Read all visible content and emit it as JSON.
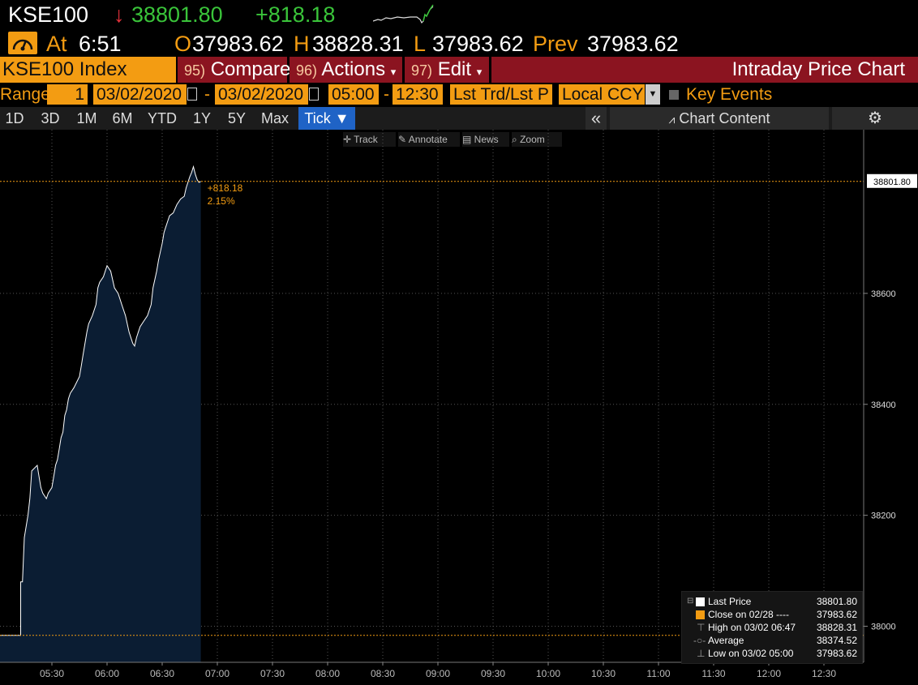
{
  "header": {
    "ticker": "KSE100",
    "arrow": "↓",
    "last": "38801.80",
    "change": "+818.18",
    "at_label": "At",
    "time": "6:51",
    "open_label": "O",
    "open": "37983.62",
    "high_label": "H",
    "high": "38828.31",
    "low_label": "L",
    "low": "37983.62",
    "prev_label": "Prev",
    "prev": "37983.62"
  },
  "menu": {
    "security": "KSE100 Index",
    "compare_num": "95)",
    "compare": "Compare",
    "actions_num": "96)",
    "actions": "Actions",
    "edit_num": "97)",
    "edit": "Edit",
    "title": "Intraday Price Chart"
  },
  "range": {
    "label": "Range",
    "bars": "1",
    "start_date": "03/02/2020",
    "end_date": "03/02/2020",
    "start_time": "05:00",
    "end_time": "12:30",
    "price_type": "Lst Trd/Lst P",
    "currency": "Local CCY",
    "key_events": "Key Events"
  },
  "periods": {
    "tabs": [
      "1D",
      "3D",
      "1M",
      "6M",
      "YTD",
      "1Y",
      "5Y",
      "Max"
    ],
    "active": "Tick ▼",
    "chart_content": "Chart Content"
  },
  "toolbar": {
    "track": "Track",
    "annotate": "Annotate",
    "news": "News",
    "zoom": "Zoom"
  },
  "colors": {
    "orange": "#f39c12",
    "green": "#3ac43a",
    "red": "#e8323c",
    "area": "#0b1d33"
  },
  "chart_data": {
    "type": "area",
    "x_ticks": [
      "05:30",
      "06:00",
      "06:30",
      "07:00",
      "07:30",
      "08:00",
      "08:30",
      "09:00",
      "09:30",
      "10:00",
      "10:30",
      "11:00",
      "11:30",
      "12:00",
      "12:30"
    ],
    "y_ticks": [
      38000,
      38200,
      38400,
      38600
    ],
    "xlim": [
      "05:00",
      "12:40"
    ],
    "ylim": [
      37935,
      38895
    ],
    "grid": true,
    "series": [
      {
        "name": "Last Price",
        "x": [
          "05:00",
          "05:13",
          "05:13",
          "05:14",
          "05:15",
          "05:17",
          "05:18",
          "05:19",
          "05:22",
          "05:23",
          "05:24",
          "05:25",
          "05:27",
          "05:28",
          "05:30",
          "05:31",
          "05:32",
          "05:33",
          "05:34",
          "05:35",
          "05:36",
          "05:37",
          "05:38",
          "05:39",
          "05:40",
          "05:42",
          "05:45",
          "05:46",
          "05:47",
          "05:48",
          "05:49",
          "05:50",
          "05:52",
          "05:54",
          "05:55",
          "05:56",
          "05:58",
          "06:00",
          "06:02",
          "06:04",
          "06:06",
          "06:07",
          "06:08",
          "06:10",
          "06:12",
          "06:14",
          "06:15",
          "06:16",
          "06:17",
          "06:18",
          "06:20",
          "06:22",
          "06:24",
          "06:25",
          "06:27",
          "06:28",
          "06:30",
          "06:31",
          "06:32",
          "06:33",
          "06:34",
          "06:36",
          "06:38",
          "06:40",
          "06:42",
          "06:43",
          "06:44",
          "06:45",
          "06:46",
          "06:47",
          "06:48",
          "06:49",
          "06:50",
          "06:51"
        ],
        "values": [
          37983.62,
          37983.62,
          38080,
          38080,
          38160,
          38200,
          38230,
          38280,
          38290,
          38270,
          38250,
          38240,
          38230,
          38240,
          38250,
          38270,
          38290,
          38300,
          38320,
          38340,
          38350,
          38380,
          38390,
          38410,
          38420,
          38430,
          38450,
          38470,
          38490,
          38510,
          38530,
          38545,
          38560,
          38580,
          38610,
          38620,
          38630,
          38650,
          38640,
          38610,
          38600,
          38590,
          38580,
          38560,
          38530,
          38510,
          38505,
          38520,
          38530,
          38540,
          38550,
          38560,
          38580,
          38610,
          38640,
          38660,
          38690,
          38710,
          38720,
          38730,
          38740,
          38745,
          38760,
          38770,
          38775,
          38790,
          38800,
          38810,
          38818,
          38828.31,
          38815,
          38805,
          38800,
          38801.8
        ]
      },
      {
        "name": "Close on 02/28",
        "values": [
          37983.62
        ]
      }
    ],
    "last_label": "38801.80",
    "change_label": "+818.18",
    "pct_label": "2.15%",
    "legend": [
      {
        "label": "Last Price",
        "value": "38801.80"
      },
      {
        "label": "Close on 02/28 ----",
        "value": "37983.62"
      },
      {
        "label": "High on 03/02 06:47",
        "value": "38828.31"
      },
      {
        "label": "Average",
        "value": "38374.52"
      },
      {
        "label": "Low on 03/02 05:00",
        "value": "37983.62"
      }
    ],
    "legend_position": "bottom-right"
  }
}
